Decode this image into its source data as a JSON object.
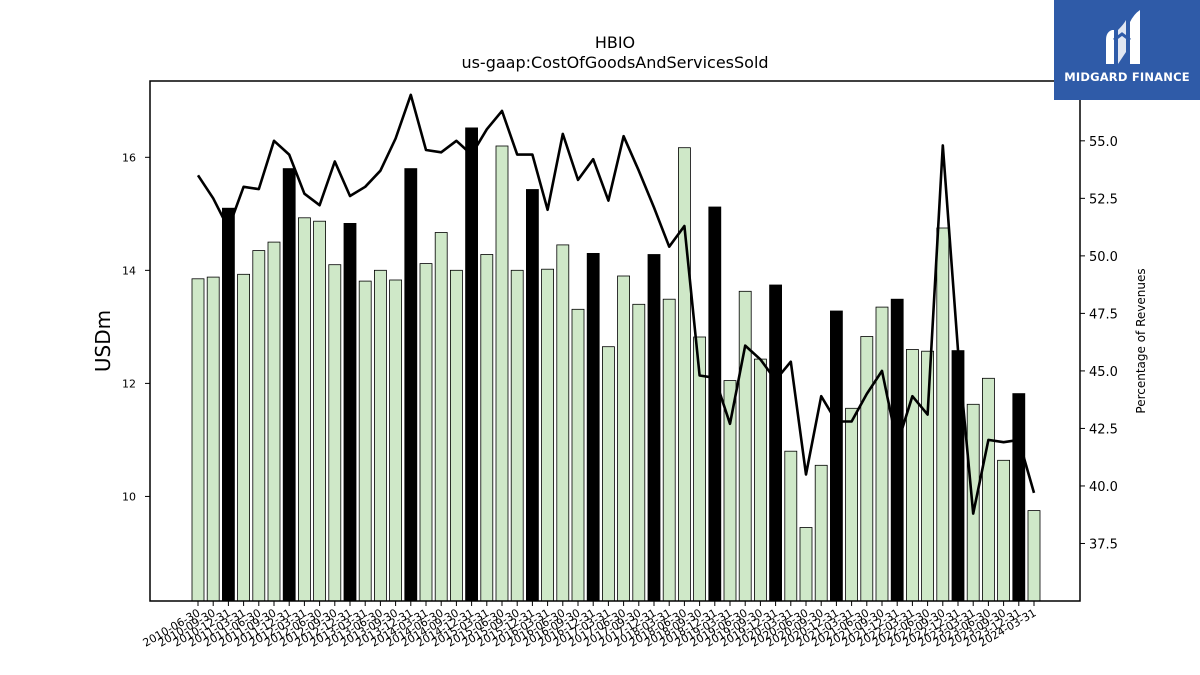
{
  "brand": {
    "name": "MIDGARD FINANCE",
    "bg_color": "#2f5ba8"
  },
  "chart_data": {
    "type": "bar",
    "title": "HBIO",
    "subtitle": "us-gaap:CostOfGoodsAndServicesSold",
    "ylabel": "USDm",
    "y2label": "Percentage of Revenues",
    "ylim": [
      8.15,
      17.35
    ],
    "y2lim": [
      35.0,
      57.6
    ],
    "yticks": [
      10,
      12,
      14,
      16
    ],
    "y2ticks": [
      37.5,
      40.0,
      42.5,
      45.0,
      47.5,
      50.0,
      52.5,
      55.0
    ],
    "colors": {
      "quarter_bar": "#cfe8c8",
      "annual_bar": "#000000",
      "line": "#000000"
    },
    "categories": [
      "2010-06-30",
      "2010-09-30",
      "2010-12-31",
      "2011-03-31",
      "2011-06-30",
      "2011-09-30",
      "2011-12-31",
      "2012-03-31",
      "2012-06-30",
      "2012-09-30",
      "2012-12-31",
      "2013-03-31",
      "2013-06-30",
      "2013-09-30",
      "2013-12-31",
      "2014-03-31",
      "2014-06-30",
      "2014-09-30",
      "2014-12-31",
      "2015-03-31",
      "2015-06-30",
      "2015-09-30",
      "2015-12-31",
      "2016-03-31",
      "2016-06-30",
      "2016-09-30",
      "2016-12-31",
      "2017-03-31",
      "2017-06-30",
      "2017-09-30",
      "2017-12-31",
      "2018-03-31",
      "2018-06-30",
      "2018-09-30",
      "2018-12-31",
      "2019-03-31",
      "2019-06-30",
      "2019-09-30",
      "2019-12-31",
      "2020-03-31",
      "2020-06-30",
      "2020-09-30",
      "2020-12-31",
      "2021-03-31",
      "2021-06-30",
      "2021-09-30",
      "2021-12-31",
      "2022-03-31",
      "2022-06-30",
      "2022-09-30",
      "2022-12-31",
      "2023-03-31",
      "2023-06-30",
      "2023-09-30",
      "2023-12-31",
      "2024-03-31"
    ],
    "series": [
      {
        "type": "bar",
        "values": [
          13.85,
          13.88,
          15.1,
          13.93,
          14.35,
          14.5,
          15.8,
          14.93,
          14.87,
          14.1,
          14.83,
          13.81,
          14.0,
          13.83,
          15.8,
          14.12,
          14.67,
          14.0,
          16.52,
          14.28,
          16.2,
          14.0,
          15.43,
          14.02,
          14.45,
          13.31,
          14.3,
          12.65,
          13.9,
          13.4,
          14.28,
          13.49,
          16.17,
          12.82,
          15.12,
          12.05,
          13.63,
          12.43,
          13.74,
          10.8,
          9.45,
          10.55,
          13.28,
          11.56,
          12.83,
          13.35,
          13.49,
          12.6,
          12.57,
          14.75,
          12.58,
          11.63,
          12.09,
          10.64,
          11.82,
          9.75
        ],
        "annual": [
          false,
          false,
          true,
          false,
          false,
          false,
          true,
          false,
          false,
          false,
          true,
          false,
          false,
          false,
          true,
          false,
          false,
          false,
          true,
          false,
          false,
          false,
          true,
          false,
          false,
          false,
          true,
          false,
          false,
          false,
          true,
          false,
          false,
          false,
          true,
          false,
          false,
          false,
          true,
          false,
          false,
          false,
          true,
          false,
          false,
          false,
          true,
          false,
          false,
          false,
          true,
          false,
          false,
          false,
          true,
          false
        ]
      },
      {
        "type": "line",
        "axis": "right",
        "values": [
          53.5,
          52.5,
          51.2,
          53.0,
          52.9,
          55.0,
          54.4,
          52.7,
          52.2,
          54.1,
          52.6,
          53.0,
          53.7,
          55.1,
          57.0,
          54.6,
          54.5,
          55.0,
          54.4,
          55.5,
          56.3,
          54.4,
          54.4,
          52.0,
          55.3,
          53.3,
          54.2,
          52.4,
          55.2,
          53.7,
          52.1,
          50.4,
          51.3,
          44.8,
          44.7,
          42.7,
          46.1,
          45.5,
          44.6,
          45.4,
          40.5,
          43.9,
          42.8,
          42.8,
          44.0,
          45.0,
          41.8,
          43.9,
          43.1,
          54.8,
          45.9,
          38.8,
          42.0,
          41.9,
          42.0,
          39.7
        ]
      }
    ]
  }
}
